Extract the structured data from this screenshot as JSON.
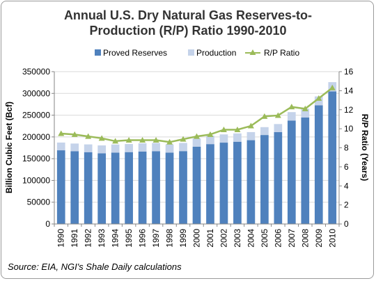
{
  "chart_data": {
    "type": "bar",
    "title_lines": [
      "Annual U.S. Dry Natural Gas Reserves-to-",
      "Production (R/P) Ratio 1990-2010"
    ],
    "ylabel_left": "Billion Cubic Feet (Bcf)",
    "ylabel_right": "R/P Ratio (Years)",
    "ylim_left": [
      0,
      350000
    ],
    "yticks_left": [
      "0",
      "50000",
      "100000",
      "150000",
      "200000",
      "250000",
      "300000",
      "350000"
    ],
    "ylim_right": [
      0,
      16
    ],
    "yticks_right": [
      "0",
      "2",
      "4",
      "6",
      "8",
      "10",
      "12",
      "14",
      "16"
    ],
    "categories": [
      "1990",
      "1991",
      "1992",
      "1993",
      "1994",
      "1995",
      "1996",
      "1997",
      "1998",
      "1999",
      "2000",
      "2001",
      "2002",
      "2003",
      "2004",
      "2005",
      "2006",
      "2007",
      "2008",
      "2009",
      "2010"
    ],
    "legend_position": "top",
    "grid": true,
    "series": [
      {
        "name": "Proved Reserves",
        "kind": "stacked-bar",
        "color": "#4f81bd",
        "values": [
          169300,
          167100,
          165000,
          162400,
          163800,
          165100,
          166500,
          167200,
          164000,
          167400,
          177400,
          183500,
          186900,
          189000,
          192500,
          204400,
          211100,
          237700,
          244700,
          272500,
          304600
        ]
      },
      {
        "name": "Production",
        "kind": "stacked-bar",
        "color": "#c5d3ea",
        "values": [
          17800,
          17700,
          17800,
          18100,
          18800,
          18600,
          18800,
          18900,
          19000,
          18800,
          19200,
          19600,
          18900,
          19100,
          18600,
          18100,
          18500,
          19300,
          20200,
          20600,
          21300
        ]
      },
      {
        "name": "R/P Ratio",
        "kind": "line",
        "color": "#9bbb59",
        "values": [
          9.5,
          9.4,
          9.2,
          9.0,
          8.7,
          8.8,
          8.8,
          8.8,
          8.6,
          8.9,
          9.2,
          9.4,
          9.9,
          9.9,
          10.3,
          11.3,
          11.4,
          12.3,
          12.1,
          13.2,
          14.3
        ]
      }
    ]
  },
  "source": "Source: EIA, NGI's Shale Daily calculations"
}
